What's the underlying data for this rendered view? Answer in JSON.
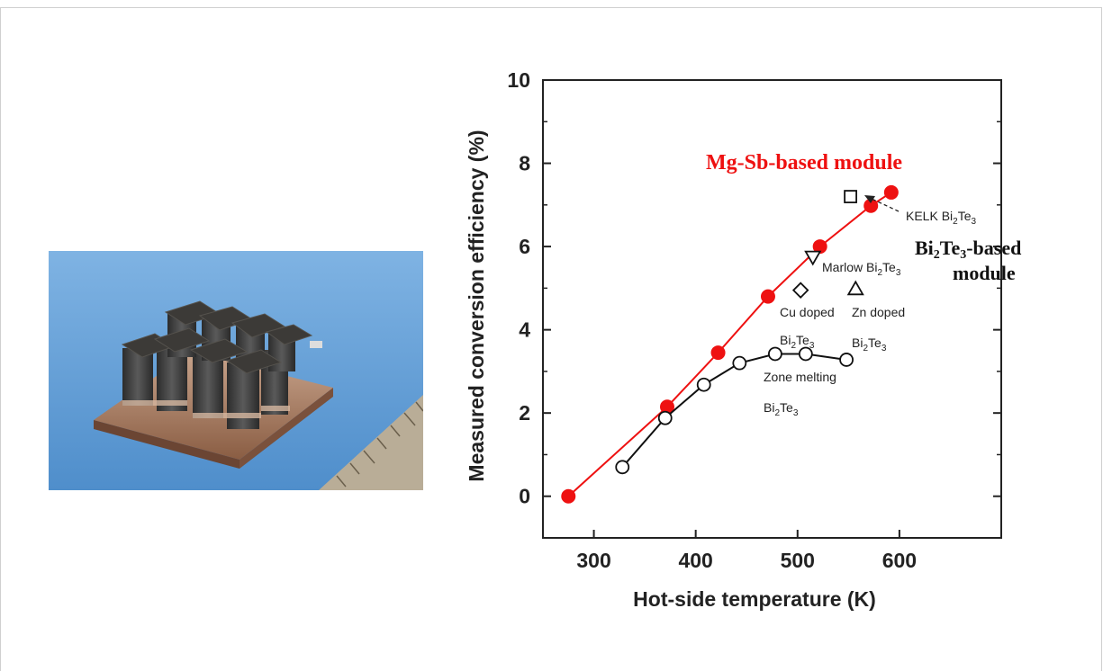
{
  "chart_data": {
    "type": "scatter",
    "xlabel": "Hot-side temperature (K)",
    "ylabel": "Measured conversion efficiency (%)",
    "xlim": [
      250,
      700
    ],
    "ylim": [
      -1,
      10
    ],
    "xticks": [
      300,
      400,
      500,
      600
    ],
    "yticks": [
      0,
      2,
      4,
      6,
      8,
      10
    ],
    "grid": false,
    "series": [
      {
        "name": "Mg-Sb-based module",
        "marker": "filled-circle",
        "line": true,
        "color": "#ee1111",
        "x": [
          275,
          372,
          422,
          471,
          522,
          572,
          592
        ],
        "y": [
          0.0,
          2.15,
          3.45,
          4.8,
          6.0,
          6.98,
          7.3
        ]
      },
      {
        "name": "Bi2Te3 Zone melting",
        "marker": "open-circle",
        "line": true,
        "color": "#111111",
        "x": [
          328,
          370,
          408,
          443,
          478,
          508,
          548
        ],
        "y": [
          0.7,
          1.88,
          2.68,
          3.2,
          3.42,
          3.42,
          3.28
        ]
      },
      {
        "name": "KELK Bi2Te3",
        "marker": "open-square",
        "line": false,
        "color": "#111111",
        "x": [
          552
        ],
        "y": [
          7.2
        ]
      },
      {
        "name": "Marlow Bi2Te3",
        "marker": "open-triangle-down",
        "line": false,
        "color": "#111111",
        "x": [
          515
        ],
        "y": [
          5.75
        ]
      },
      {
        "name": "Cu doped",
        "marker": "open-diamond",
        "line": false,
        "color": "#111111",
        "x": [
          503
        ],
        "y": [
          4.95
        ]
      },
      {
        "name": "Zn doped",
        "marker": "open-triangle-up",
        "line": false,
        "color": "#111111",
        "x": [
          557
        ],
        "y": [
          4.98
        ]
      }
    ],
    "annotations": {
      "mgsb_title": "Mg-Sb-based module",
      "bi2te3_title_main": "Bi",
      "bi2te3_title_sub1": "2",
      "bi2te3_title_te": "Te",
      "bi2te3_title_sub2": "3",
      "bi2te3_title_rest": "-based",
      "bi2te3_title_line2": "module",
      "kelk": "KELK Bi",
      "marlow": "Marlow Bi",
      "cu": "Cu doped",
      "zn": "Zn doped",
      "bi_a": "Bi",
      "bi_b": "Bi",
      "bi_c": "Bi",
      "te": "Te",
      "sub2": "2",
      "sub3": "3",
      "zone_melting": "Zone melting"
    }
  },
  "photo": {
    "description_icon": "thermoelectric-module-photo",
    "bg_color": "#5f9fd6"
  }
}
